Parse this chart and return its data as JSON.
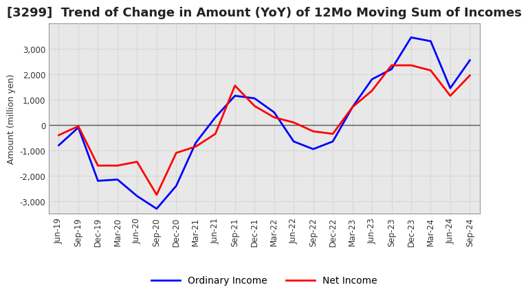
{
  "title": "[3299]  Trend of Change in Amount (YoY) of 12Mo Moving Sum of Incomes",
  "ylabel": "Amount (million yen)",
  "ylim": [
    -3500,
    4000
  ],
  "yticks": [
    -3000,
    -2000,
    -1000,
    0,
    1000,
    2000,
    3000
  ],
  "ordinary_income_color": "#0000FF",
  "net_income_color": "#FF0000",
  "background_color": "#FFFFFF",
  "plot_bg_color": "#E8E8E8",
  "grid_color": "#BBBBBB",
  "x_labels": [
    "Jun-19",
    "Sep-19",
    "Dec-19",
    "Mar-20",
    "Jun-20",
    "Sep-20",
    "Dec-20",
    "Mar-21",
    "Jun-21",
    "Sep-21",
    "Dec-21",
    "Mar-22",
    "Jun-22",
    "Sep-22",
    "Dec-22",
    "Mar-23",
    "Jun-23",
    "Sep-23",
    "Dec-23",
    "Mar-24",
    "Jun-24",
    "Sep-24"
  ],
  "ordinary_income": [
    -800,
    -100,
    -2200,
    -2150,
    -2800,
    -3300,
    -2400,
    -700,
    300,
    1150,
    1050,
    500,
    -650,
    -950,
    -650,
    700,
    1800,
    2200,
    3450,
    3300,
    1450,
    2550
  ],
  "net_income": [
    -400,
    -50,
    -1600,
    -1600,
    -1450,
    -2750,
    -1100,
    -850,
    -350,
    1550,
    750,
    300,
    100,
    -250,
    -350,
    700,
    1350,
    2350,
    2350,
    2150,
    1150,
    1950
  ],
  "legend_labels": [
    "Ordinary Income",
    "Net Income"
  ],
  "title_fontsize": 13,
  "axis_label_fontsize": 9,
  "tick_fontsize": 8.5,
  "legend_fontsize": 10,
  "linewidth": 2.0
}
